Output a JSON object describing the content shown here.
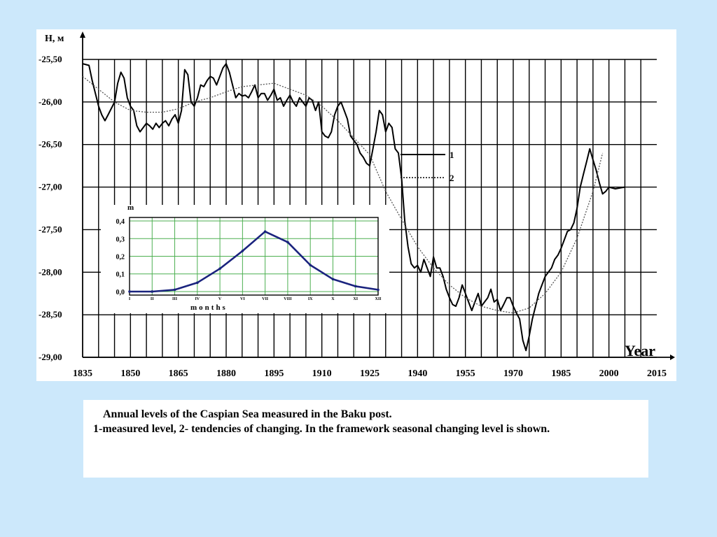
{
  "caption": {
    "line1": "Annual levels of the Caspian Sea measured in the Baku post.",
    "line2": "1-measured level, 2- tendencies of changing. In the framework seasonal changing level is shown."
  },
  "colors": {
    "background": "#cce8fb",
    "panel": "#ffffff",
    "grid": "#000000",
    "measured": "#000000",
    "trend": "#555555",
    "inset_curve": "#1a237e",
    "inset_grid": "#4caf50"
  },
  "chart_data": [
    {
      "type": "line",
      "ylabel": "H, м",
      "xlabel": "Year",
      "xlim": [
        1835,
        2015
      ],
      "ylim": [
        -29.0,
        -25.5
      ],
      "x_ticks": [
        1835,
        1850,
        1865,
        1880,
        1895,
        1910,
        1925,
        1940,
        1955,
        1970,
        1985,
        2000,
        2015
      ],
      "y_ticks": [
        "-25,50",
        "-26,00",
        "-26,50",
        "-27,00",
        "-27,50",
        "-28,00",
        "-28,50",
        "-29,00"
      ],
      "y_tick_values": [
        -25.5,
        -26.0,
        -26.5,
        -27.0,
        -27.5,
        -28.0,
        -28.5,
        -29.0
      ],
      "grid": true,
      "series": [
        {
          "name": "1",
          "style": "solid",
          "x": [
            1835,
            1837,
            1838,
            1840,
            1841,
            1842,
            1843,
            1845,
            1846,
            1847,
            1848,
            1849,
            1850,
            1851,
            1852,
            1853,
            1854,
            1855,
            1856,
            1857,
            1858,
            1859,
            1860,
            1861,
            1862,
            1863,
            1864,
            1865,
            1866,
            1867,
            1868,
            1869,
            1870,
            1871,
            1872,
            1873,
            1874,
            1875,
            1876,
            1877,
            1878,
            1879,
            1880,
            1881,
            1882,
            1883,
            1884,
            1885,
            1886,
            1887,
            1888,
            1889,
            1890,
            1891,
            1892,
            1893,
            1894,
            1895,
            1896,
            1897,
            1898,
            1899,
            1900,
            1901,
            1902,
            1903,
            1904,
            1905,
            1906,
            1907,
            1908,
            1909,
            1910,
            1911,
            1912,
            1913,
            1914,
            1915,
            1916,
            1917,
            1918,
            1919,
            1920,
            1921,
            1922,
            1923,
            1924,
            1925,
            1926,
            1927,
            1928,
            1929,
            1930,
            1931,
            1932,
            1933,
            1934,
            1935,
            1936,
            1937,
            1938,
            1939,
            1940,
            1941,
            1942,
            1943,
            1944,
            1945,
            1946,
            1947,
            1948,
            1949,
            1950,
            1951,
            1952,
            1953,
            1954,
            1955,
            1956,
            1957,
            1958,
            1959,
            1960,
            1961,
            1962,
            1963,
            1964,
            1965,
            1966,
            1967,
            1968,
            1969,
            1970,
            1971,
            1972,
            1973,
            1974,
            1975,
            1976,
            1977,
            1978,
            1979,
            1980,
            1981,
            1982,
            1983,
            1984,
            1985,
            1986,
            1987,
            1988,
            1989,
            1990,
            1991,
            1992,
            1993,
            1994,
            1995,
            1996,
            1997,
            1998,
            1999,
            2000,
            2002,
            2005
          ],
          "y": [
            -25.55,
            -25.57,
            -25.75,
            -26.05,
            -26.15,
            -26.22,
            -26.15,
            -26.0,
            -25.78,
            -25.65,
            -25.72,
            -25.95,
            -26.05,
            -26.1,
            -26.28,
            -26.35,
            -26.3,
            -26.25,
            -26.28,
            -26.32,
            -26.25,
            -26.3,
            -26.25,
            -26.22,
            -26.28,
            -26.2,
            -26.15,
            -26.25,
            -26.1,
            -25.62,
            -25.68,
            -26.0,
            -26.05,
            -25.95,
            -25.8,
            -25.82,
            -25.75,
            -25.7,
            -25.72,
            -25.8,
            -25.7,
            -25.6,
            -25.55,
            -25.65,
            -25.8,
            -25.95,
            -25.9,
            -25.93,
            -25.92,
            -25.95,
            -25.88,
            -25.8,
            -25.95,
            -25.9,
            -25.9,
            -25.98,
            -25.92,
            -25.85,
            -25.98,
            -25.95,
            -26.05,
            -25.98,
            -25.92,
            -26.0,
            -26.05,
            -25.95,
            -26.0,
            -26.05,
            -25.95,
            -25.98,
            -26.1,
            -26.0,
            -26.35,
            -26.4,
            -26.42,
            -26.35,
            -26.15,
            -26.05,
            -26.0,
            -26.1,
            -26.2,
            -26.4,
            -26.45,
            -26.5,
            -26.6,
            -26.65,
            -26.72,
            -26.75,
            -26.55,
            -26.35,
            -26.1,
            -26.15,
            -26.35,
            -26.25,
            -26.3,
            -26.55,
            -26.6,
            -26.9,
            -27.4,
            -27.7,
            -27.9,
            -27.95,
            -27.92,
            -28.0,
            -27.85,
            -27.95,
            -28.05,
            -27.82,
            -27.95,
            -27.95,
            -28.05,
            -28.2,
            -28.3,
            -28.38,
            -28.4,
            -28.3,
            -28.15,
            -28.25,
            -28.35,
            -28.45,
            -28.35,
            -28.25,
            -28.4,
            -28.35,
            -28.3,
            -28.2,
            -28.35,
            -28.32,
            -28.45,
            -28.38,
            -28.3,
            -28.3,
            -28.4,
            -28.48,
            -28.55,
            -28.8,
            -28.92,
            -28.75,
            -28.55,
            -28.4,
            -28.25,
            -28.15,
            -28.05,
            -28.0,
            -27.95,
            -27.85,
            -27.8,
            -27.72,
            -27.62,
            -27.52,
            -27.5,
            -27.42,
            -27.25,
            -27.0,
            -26.85,
            -26.7,
            -26.55,
            -26.68,
            -26.8,
            -26.95,
            -27.08,
            -27.05,
            -27.0,
            -27.02,
            -27.0
          ]
        },
        {
          "name": "2",
          "style": "dotted",
          "x": [
            1835,
            1840,
            1845,
            1850,
            1855,
            1860,
            1865,
            1870,
            1875,
            1880,
            1885,
            1890,
            1895,
            1900,
            1905,
            1910,
            1915,
            1920,
            1925,
            1930,
            1935,
            1940,
            1945,
            1950,
            1955,
            1960,
            1965,
            1970,
            1975,
            1980,
            1985,
            1990,
            1995,
            1998
          ],
          "y": [
            -25.7,
            -25.85,
            -26.0,
            -26.1,
            -26.12,
            -26.12,
            -26.08,
            -26.0,
            -25.95,
            -25.88,
            -25.82,
            -25.8,
            -25.78,
            -25.85,
            -25.92,
            -26.05,
            -26.22,
            -26.42,
            -26.62,
            -27.05,
            -27.38,
            -27.7,
            -27.95,
            -28.15,
            -28.3,
            -28.4,
            -28.45,
            -28.48,
            -28.42,
            -28.25,
            -28.0,
            -27.6,
            -27.05,
            -26.6
          ]
        }
      ],
      "legend": [
        {
          "label": "1",
          "style": "solid",
          "placement": "right-of-center"
        },
        {
          "label": "2",
          "style": "dotted",
          "placement": "right-of-center"
        }
      ],
      "xlabel_placement": "bottom-right"
    },
    {
      "type": "line",
      "ylabel": "m",
      "xlabel": "months",
      "categories": [
        "I",
        "II",
        "III",
        "IV",
        "V",
        "VI",
        "VII",
        "VIII",
        "IX",
        "X",
        "XI",
        "XII"
      ],
      "y_ticks": [
        "0,4",
        "0,3",
        "0,2",
        "0,1",
        "0,0"
      ],
      "y_tick_values": [
        0.4,
        0.3,
        0.2,
        0.1,
        0.0
      ],
      "ylim": [
        -0.02,
        0.42
      ],
      "grid": true,
      "series": [
        {
          "x": [
            1,
            2,
            3,
            4,
            5,
            6,
            7,
            8,
            9,
            10,
            11,
            12
          ],
          "y": [
            0.0,
            0.0,
            0.01,
            0.05,
            0.13,
            0.23,
            0.34,
            0.28,
            0.15,
            0.07,
            0.03,
            0.01
          ]
        }
      ],
      "placement": "inset-lower-left"
    }
  ]
}
